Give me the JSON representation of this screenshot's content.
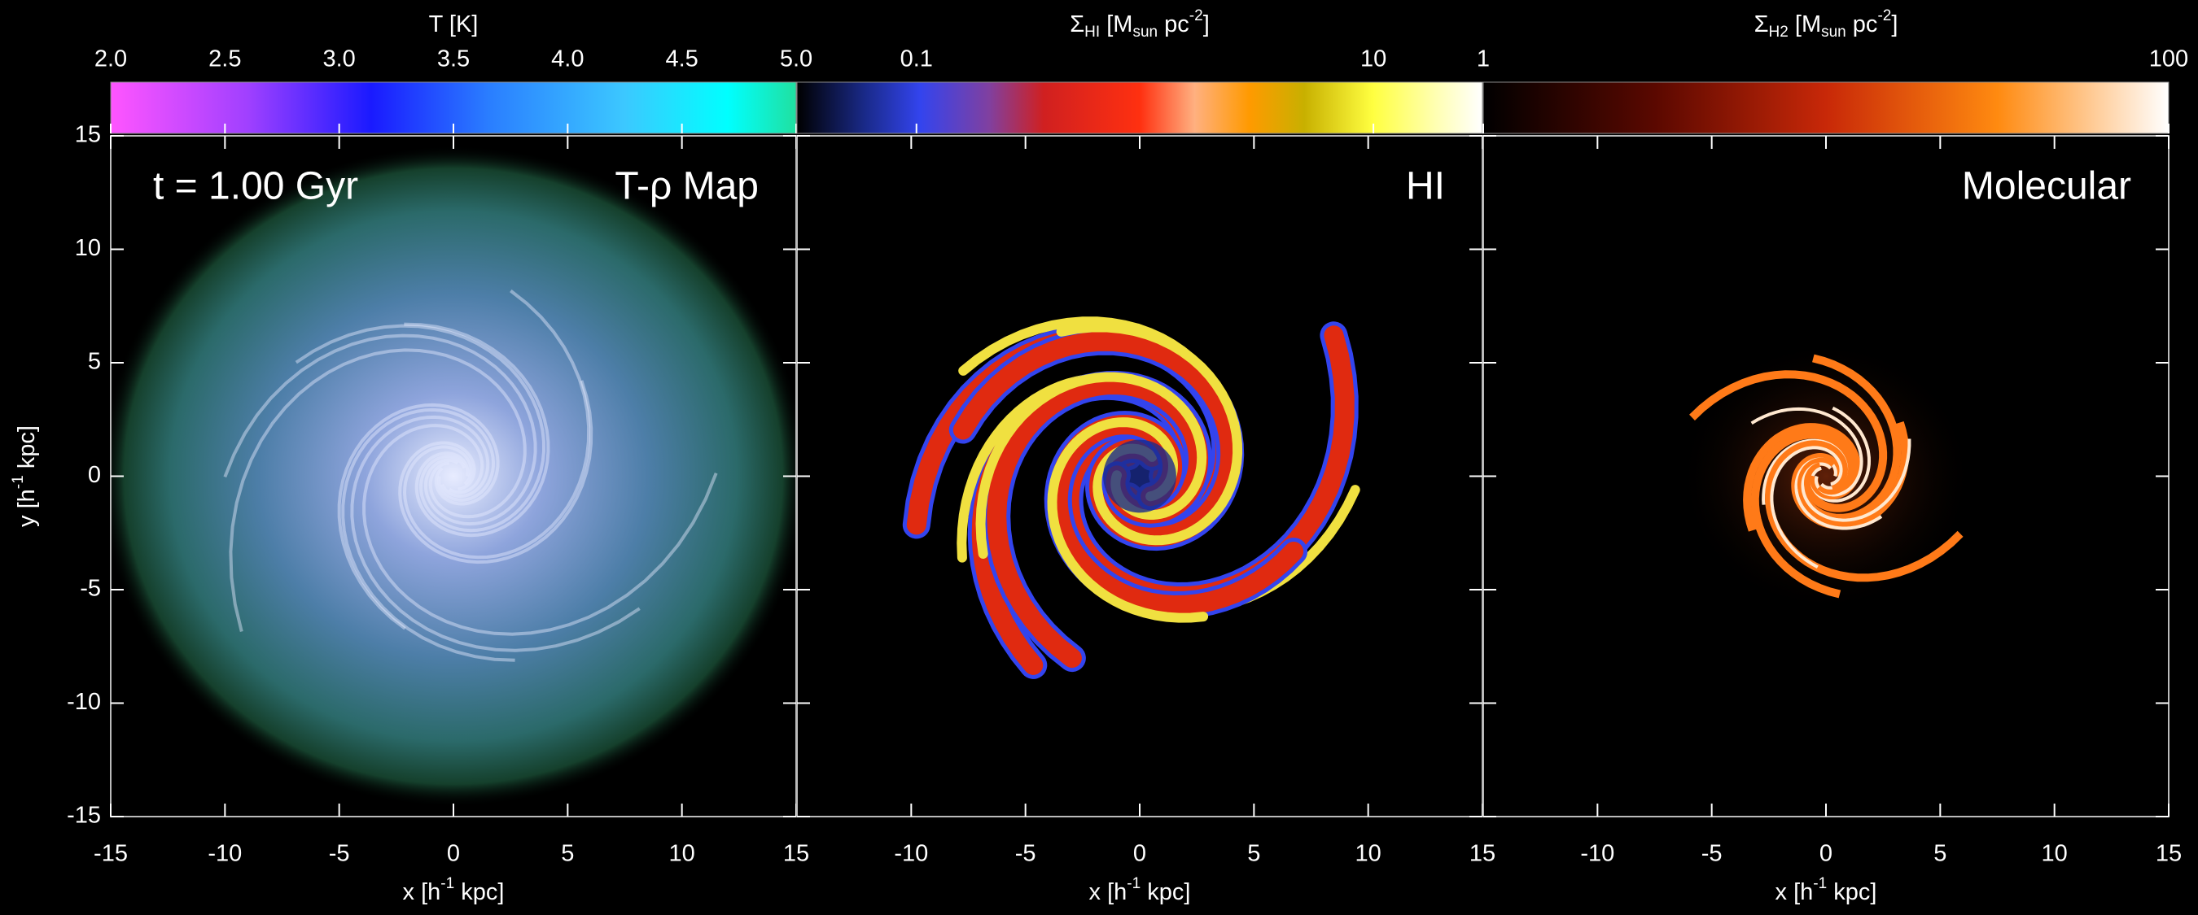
{
  "chart_data": [
    {
      "type": "map",
      "annotations": [
        "t = 1.00 Gyr",
        "T-ρ Map"
      ],
      "colorbar": {
        "label": [
          {
            "text": "T [K]"
          }
        ],
        "lim": [
          2,
          5
        ],
        "ticks": [
          {
            "value": 2,
            "label": "2.0"
          },
          {
            "value": 2.5,
            "label": "2.5"
          },
          {
            "value": 3,
            "label": "3.0"
          },
          {
            "value": 3.5,
            "label": "3.5"
          },
          {
            "value": 4,
            "label": "4.0"
          },
          {
            "value": 4.5,
            "label": "4.5"
          },
          {
            "value": 5,
            "label": "5.0"
          }
        ]
      },
      "xlim": [
        -15,
        15
      ],
      "xticks": [
        -15,
        -10,
        -5,
        0,
        5,
        10,
        15
      ],
      "ylim": [
        -15,
        15
      ],
      "yticks": [
        -15,
        -10,
        -5,
        0,
        5,
        10,
        15
      ],
      "xlabel": [
        {
          "text": "x [h"
        },
        {
          "text": "-1",
          "sup": true
        },
        {
          "text": " kpc]"
        }
      ],
      "ylabel": [
        {
          "text": "y [h"
        },
        {
          "text": "-1",
          "sup": true
        },
        {
          "text": " kpc]"
        }
      ]
    },
    {
      "type": "map",
      "annotations": [
        "HI"
      ],
      "colorbar": {
        "label": [
          {
            "text": "Σ"
          },
          {
            "text": "HI",
            "sub": true
          },
          {
            "text": " [M"
          },
          {
            "text": "sun",
            "sub": true
          },
          {
            "text": " pc"
          },
          {
            "text": "-2",
            "sup": true
          },
          {
            "text": "]"
          }
        ],
        "lim": [
          0.03,
          30
        ],
        "log": true,
        "ticks": [
          0.1,
          10
        ]
      },
      "xlim": [
        -15,
        15
      ],
      "xticks": [
        -10,
        -5,
        0,
        5,
        10,
        15
      ],
      "ylim": [
        -15,
        15
      ],
      "xlabel": [
        {
          "text": "x [h"
        },
        {
          "text": "-1",
          "sup": true
        },
        {
          "text": " kpc]"
        }
      ]
    },
    {
      "type": "map",
      "annotations": [
        "Molecular"
      ],
      "colorbar": {
        "label": [
          {
            "text": "Σ"
          },
          {
            "text": "H2",
            "sub": true
          },
          {
            "text": " [M"
          },
          {
            "text": "sun",
            "sub": true
          },
          {
            "text": " pc"
          },
          {
            "text": "-2",
            "sup": true
          },
          {
            "text": "]"
          }
        ],
        "lim": [
          1,
          100
        ],
        "log": true,
        "ticks": [
          1,
          100
        ]
      },
      "xlim": [
        -15,
        15
      ],
      "xticks": [
        -10,
        -5,
        0,
        5,
        10,
        15
      ],
      "ylim": [
        -15,
        15
      ],
      "xlabel": [
        {
          "text": "x [h"
        },
        {
          "text": "-1",
          "sup": true
        },
        {
          "text": " kpc]"
        }
      ]
    }
  ]
}
